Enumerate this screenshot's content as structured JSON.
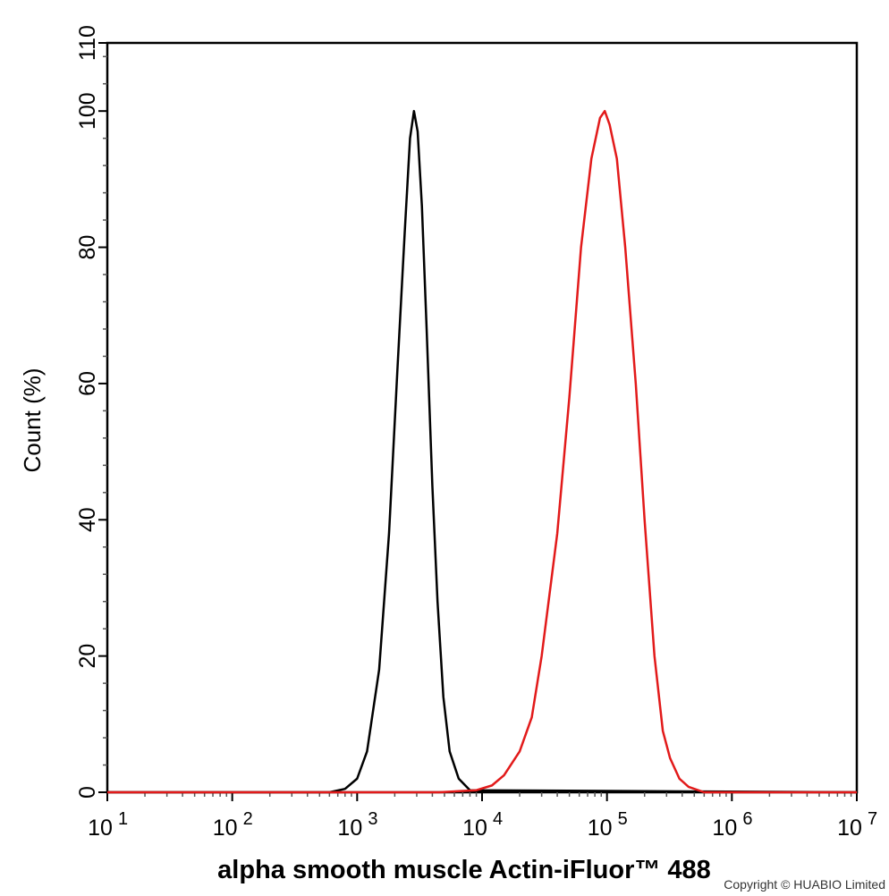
{
  "chart_data": {
    "type": "line",
    "xlabel": "alpha smooth muscle Actin-iFluor™ 488",
    "ylabel": "Count  (%)",
    "xscale": "log",
    "xlim": [
      10,
      10000000
    ],
    "ylim": [
      0,
      110
    ],
    "x_ticks": [
      {
        "base": "10",
        "exp": "1"
      },
      {
        "base": "10",
        "exp": "2"
      },
      {
        "base": "10",
        "exp": "3"
      },
      {
        "base": "10",
        "exp": "4"
      },
      {
        "base": "10",
        "exp": "5"
      },
      {
        "base": "10",
        "exp": "6"
      },
      {
        "base": "10",
        "exp": "7"
      }
    ],
    "y_ticks": [
      "0",
      "20",
      "40",
      "60",
      "80",
      "100",
      "110"
    ],
    "grid": false,
    "series": [
      {
        "color": "#000000",
        "points": [
          [
            10,
            0
          ],
          [
            600,
            0
          ],
          [
            800,
            0.5
          ],
          [
            1000,
            2
          ],
          [
            1200,
            6
          ],
          [
            1500,
            18
          ],
          [
            1800,
            38
          ],
          [
            2100,
            62
          ],
          [
            2400,
            82
          ],
          [
            2650,
            96
          ],
          [
            2850,
            100
          ],
          [
            3050,
            97
          ],
          [
            3300,
            86
          ],
          [
            3600,
            68
          ],
          [
            4000,
            45
          ],
          [
            4400,
            28
          ],
          [
            4900,
            14
          ],
          [
            5500,
            6
          ],
          [
            6500,
            2
          ],
          [
            8000,
            0.3
          ],
          [
            10000000,
            0
          ]
        ]
      },
      {
        "color": "#e21a1a",
        "points": [
          [
            10,
            0
          ],
          [
            4500,
            0
          ],
          [
            9000,
            0.3
          ],
          [
            12000,
            1
          ],
          [
            15000,
            2.5
          ],
          [
            20000,
            6
          ],
          [
            25000,
            11
          ],
          [
            30000,
            20
          ],
          [
            40000,
            38
          ],
          [
            50000,
            58
          ],
          [
            62000,
            80
          ],
          [
            75000,
            93
          ],
          [
            88000,
            99
          ],
          [
            96000,
            100
          ],
          [
            105000,
            98
          ],
          [
            120000,
            93
          ],
          [
            140000,
            80
          ],
          [
            170000,
            60
          ],
          [
            200000,
            40
          ],
          [
            240000,
            20
          ],
          [
            280000,
            9
          ],
          [
            320000,
            5
          ],
          [
            380000,
            2
          ],
          [
            450000,
            0.8
          ],
          [
            600000,
            0
          ],
          [
            10000000,
            0
          ]
        ]
      }
    ]
  },
  "copyright": "Copyright © HUABIO Limited"
}
